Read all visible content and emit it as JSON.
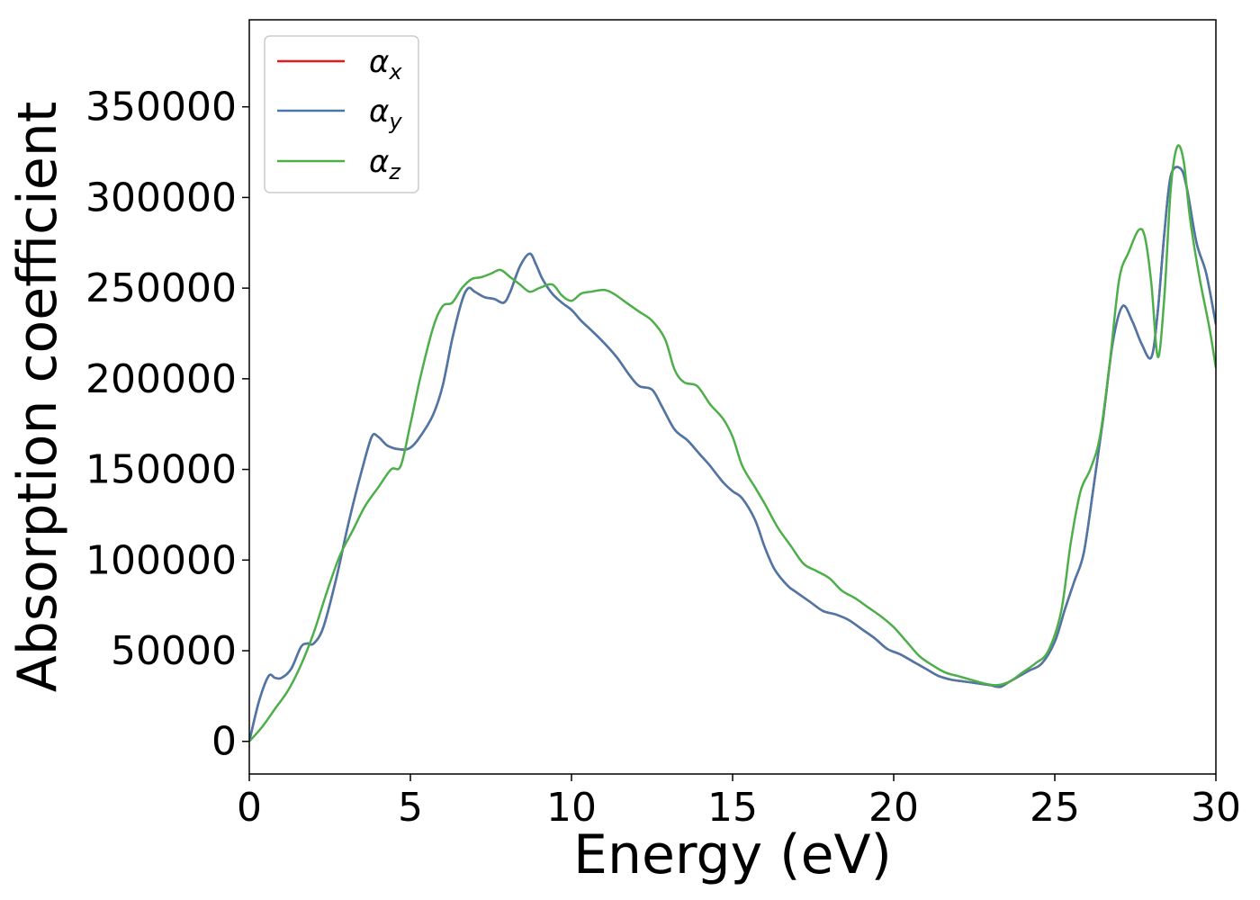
{
  "chart_data": {
    "type": "line",
    "title": "",
    "xlabel": "Energy (eV)",
    "ylabel": "Absorption coefficient",
    "xlim": [
      0,
      30
    ],
    "ylim": [
      -18000,
      398000
    ],
    "xticks": [
      0,
      5,
      10,
      15,
      20,
      25,
      30
    ],
    "yticks": [
      0,
      50000,
      100000,
      150000,
      200000,
      250000,
      300000,
      350000
    ],
    "grid": false,
    "legend_position": "top-left",
    "series": [
      {
        "name": "α_x",
        "legend_main": "α",
        "legend_sub": "x",
        "color": "#e41a1c",
        "x": [
          0,
          0.3,
          0.6,
          0.8,
          1.0,
          1.3,
          1.6,
          1.8,
          2.0,
          2.3,
          2.7,
          3.1,
          3.5,
          3.8,
          4.0,
          4.3,
          4.7,
          5.0,
          5.3,
          5.7,
          6.0,
          6.3,
          6.6,
          6.8,
          7.0,
          7.3,
          7.6,
          7.9,
          8.1,
          8.4,
          8.7,
          8.9,
          9.1,
          9.4,
          9.7,
          10.0,
          10.3,
          10.6,
          11.0,
          11.4,
          11.8,
          12.1,
          12.5,
          12.8,
          13.2,
          13.6,
          14.0,
          14.3,
          14.7,
          15.0,
          15.3,
          15.7,
          16.0,
          16.3,
          16.7,
          17.0,
          17.4,
          17.8,
          18.2,
          18.6,
          19.0,
          19.4,
          19.8,
          20.2,
          20.6,
          21.0,
          21.4,
          21.8,
          22.2,
          22.6,
          23.0,
          23.3,
          23.6,
          23.9,
          24.2,
          24.6,
          25.0,
          25.3,
          25.6,
          25.9,
          26.2,
          26.5,
          26.8,
          27.1,
          27.4,
          27.7,
          28.0,
          28.2,
          28.4,
          28.6,
          28.9,
          29.1,
          29.4,
          29.7,
          30.0
        ],
        "y": [
          0,
          22000,
          36000,
          35000,
          35000,
          40000,
          52000,
          54000,
          54000,
          63000,
          90000,
          122000,
          150000,
          168000,
          168000,
          163000,
          161000,
          162000,
          168000,
          180000,
          196000,
          222000,
          243000,
          250000,
          248000,
          245000,
          244000,
          242000,
          248000,
          262000,
          269000,
          263000,
          255000,
          247000,
          242000,
          238000,
          232000,
          227000,
          220000,
          212000,
          202000,
          196000,
          194000,
          185000,
          172000,
          166000,
          158000,
          152000,
          143000,
          138000,
          134000,
          122000,
          107000,
          95000,
          86000,
          82000,
          77000,
          72000,
          70000,
          67000,
          62000,
          57000,
          51000,
          48000,
          44000,
          40000,
          36000,
          34000,
          33000,
          32000,
          31000,
          30000,
          33000,
          36000,
          39000,
          43000,
          55000,
          72000,
          88000,
          104000,
          140000,
          178000,
          220000,
          240000,
          232000,
          219000,
          212000,
          238000,
          280000,
          312000,
          316000,
          305000,
          275000,
          258000,
          230000
        ]
      },
      {
        "name": "α_y",
        "legend_main": "α",
        "legend_sub": "y",
        "color": "#4a78a8",
        "x": [
          0,
          0.3,
          0.6,
          0.8,
          1.0,
          1.3,
          1.6,
          1.8,
          2.0,
          2.3,
          2.7,
          3.1,
          3.5,
          3.8,
          4.0,
          4.3,
          4.7,
          5.0,
          5.3,
          5.7,
          6.0,
          6.3,
          6.6,
          6.8,
          7.0,
          7.3,
          7.6,
          7.9,
          8.1,
          8.4,
          8.7,
          8.9,
          9.1,
          9.4,
          9.7,
          10.0,
          10.3,
          10.6,
          11.0,
          11.4,
          11.8,
          12.1,
          12.5,
          12.8,
          13.2,
          13.6,
          14.0,
          14.3,
          14.7,
          15.0,
          15.3,
          15.7,
          16.0,
          16.3,
          16.7,
          17.0,
          17.4,
          17.8,
          18.2,
          18.6,
          19.0,
          19.4,
          19.8,
          20.2,
          20.6,
          21.0,
          21.4,
          21.8,
          22.2,
          22.6,
          23.0,
          23.3,
          23.6,
          23.9,
          24.2,
          24.6,
          25.0,
          25.3,
          25.6,
          25.9,
          26.2,
          26.5,
          26.8,
          27.1,
          27.4,
          27.7,
          28.0,
          28.2,
          28.4,
          28.6,
          28.9,
          29.1,
          29.4,
          29.7,
          30.0
        ],
        "y": [
          0,
          22000,
          36000,
          35000,
          35000,
          40000,
          52000,
          54000,
          54000,
          63000,
          90000,
          122000,
          150000,
          168000,
          168000,
          163000,
          161000,
          162000,
          168000,
          180000,
          196000,
          222000,
          243000,
          250000,
          248000,
          245000,
          244000,
          242000,
          248000,
          262000,
          269000,
          263000,
          255000,
          247000,
          242000,
          238000,
          232000,
          227000,
          220000,
          212000,
          202000,
          196000,
          194000,
          185000,
          172000,
          166000,
          158000,
          152000,
          143000,
          138000,
          134000,
          122000,
          107000,
          95000,
          86000,
          82000,
          77000,
          72000,
          70000,
          67000,
          62000,
          57000,
          51000,
          48000,
          44000,
          40000,
          36000,
          34000,
          33000,
          32000,
          31000,
          30000,
          33000,
          36000,
          39000,
          43000,
          55000,
          72000,
          88000,
          104000,
          140000,
          178000,
          220000,
          240000,
          232000,
          219000,
          212000,
          238000,
          280000,
          312000,
          316000,
          305000,
          275000,
          258000,
          230000
        ]
      },
      {
        "name": "α_z",
        "legend_main": "α",
        "legend_sub": "z",
        "color": "#4daf4a",
        "x": [
          0,
          0.4,
          0.8,
          1.2,
          1.6,
          2.0,
          2.4,
          2.8,
          3.2,
          3.6,
          4.0,
          4.4,
          4.7,
          5.0,
          5.3,
          5.7,
          6.0,
          6.3,
          6.6,
          6.9,
          7.2,
          7.5,
          7.8,
          8.1,
          8.4,
          8.7,
          9.0,
          9.4,
          9.7,
          10.0,
          10.3,
          10.6,
          11.0,
          11.3,
          11.7,
          12.1,
          12.5,
          12.9,
          13.2,
          13.5,
          13.9,
          14.3,
          14.7,
          15.0,
          15.3,
          15.7,
          16.0,
          16.4,
          16.8,
          17.2,
          17.6,
          18.0,
          18.4,
          18.8,
          19.2,
          19.6,
          20.0,
          20.4,
          20.8,
          21.2,
          21.6,
          22.0,
          22.4,
          22.8,
          23.2,
          23.6,
          24.0,
          24.4,
          24.8,
          25.2,
          25.5,
          25.8,
          26.1,
          26.4,
          26.7,
          27.0,
          27.3,
          27.6,
          27.8,
          28.0,
          28.2,
          28.4,
          28.6,
          28.8,
          29.0,
          29.2,
          29.5,
          29.8,
          30.0
        ],
        "y": [
          0,
          8000,
          18000,
          28000,
          42000,
          60000,
          82000,
          102000,
          116000,
          130000,
          140000,
          150000,
          152000,
          175000,
          200000,
          228000,
          240000,
          242000,
          250000,
          255000,
          256000,
          258000,
          260000,
          256000,
          252000,
          248000,
          250000,
          252000,
          246000,
          243000,
          247000,
          248000,
          249000,
          247000,
          242000,
          237000,
          232000,
          222000,
          205000,
          198000,
          196000,
          186000,
          178000,
          168000,
          152000,
          140000,
          131000,
          118000,
          108000,
          98000,
          94000,
          90000,
          83000,
          79000,
          74000,
          69000,
          63000,
          55000,
          47000,
          42000,
          38000,
          36000,
          34000,
          32000,
          31000,
          33000,
          38000,
          43000,
          50000,
          72000,
          110000,
          138000,
          150000,
          168000,
          208000,
          255000,
          270000,
          282000,
          278000,
          252000,
          212000,
          245000,
          305000,
          328000,
          320000,
          288000,
          255000,
          228000,
          206000
        ]
      }
    ]
  }
}
